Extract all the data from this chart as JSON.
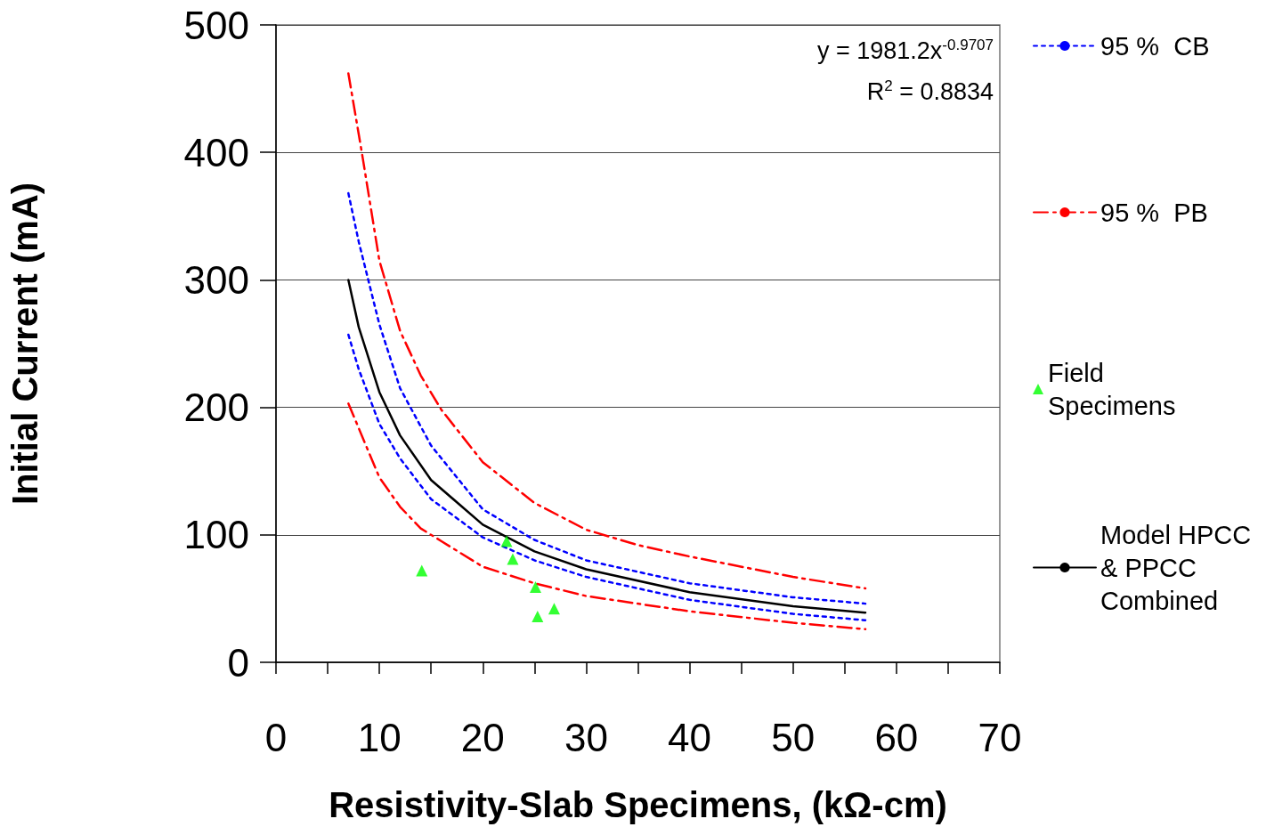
{
  "chart_data": {
    "type": "line",
    "xlabel": "Resistivity-Slab Specimens, (kΩ-cm)",
    "ylabel": "Initial Current (mA)",
    "xlim": [
      0,
      70
    ],
    "xticks": [
      0,
      {
        "value": 5,
        "label": null
      },
      10,
      {
        "value": 15,
        "label": null
      },
      20,
      {
        "value": 25,
        "label": null
      },
      30,
      {
        "value": 35,
        "label": null
      },
      40,
      {
        "value": 45,
        "label": null
      },
      50,
      {
        "value": 55,
        "label": null
      },
      60,
      {
        "value": 65,
        "label": null
      },
      70
    ],
    "ylim": [
      0,
      500
    ],
    "yticks": [
      0,
      100,
      200,
      300,
      400,
      500
    ],
    "grid": "y",
    "legend": "right",
    "marker": "none",
    "annotations": [
      "y = 1981.2x$^{-0.9707}$",
      "R$^{2}$ = 0.8834"
    ],
    "series": [
      {
        "name": "95 %  CB",
        "color": "#0000ff",
        "line_style": "dotted",
        "x": [
          7,
          8,
          10,
          12,
          15,
          20,
          25,
          30,
          40,
          50,
          57
        ],
        "values": [
          368,
          330,
          265,
          215,
          170,
          120,
          96,
          80,
          62,
          51,
          46
        ]
      },
      {
        "color": "#0000ff",
        "line_style": "dotted",
        "x": [
          7,
          8,
          10,
          12,
          15,
          20,
          25,
          30,
          40,
          50,
          57
        ],
        "values": [
          257,
          230,
          187,
          160,
          128,
          98,
          80,
          67,
          49,
          38,
          33
        ]
      },
      {
        "name": "95 %  PB",
        "color": "#ff0000",
        "line_style": "dashed",
        "x": [
          7,
          8.3,
          10,
          12,
          14,
          16,
          20,
          25,
          30,
          35,
          40,
          50,
          57
        ],
        "values": [
          462,
          400,
          315,
          260,
          225,
          198,
          157,
          125,
          104,
          92,
          83,
          67,
          58
        ]
      },
      {
        "color": "#ff0000",
        "line_style": "dashed",
        "x": [
          7,
          10,
          12,
          14,
          16,
          20,
          25,
          30,
          40,
          50,
          57
        ],
        "values": [
          203,
          145,
          122,
          105,
          95,
          75,
          62,
          52,
          40,
          31,
          26
        ]
      },
      {
        "name": "Field\nSpecimens",
        "type": "scatter",
        "marker": "triangle",
        "color": "#00ff00",
        "x": [
          14.1,
          22.3,
          22.9,
          25.1,
          25.3,
          26.9
        ],
        "values": [
          72,
          95,
          81,
          59,
          36,
          42
        ]
      },
      {
        "name": "Model HPCC\n& PPCC\nCombined",
        "color": "#000000",
        "line_style": "solid",
        "x": [
          7,
          8,
          10,
          12,
          15,
          20,
          25,
          30,
          40,
          50,
          57
        ],
        "values": [
          300,
          263,
          212,
          178,
          143,
          108,
          87,
          73,
          55,
          44,
          39
        ]
      }
    ]
  }
}
